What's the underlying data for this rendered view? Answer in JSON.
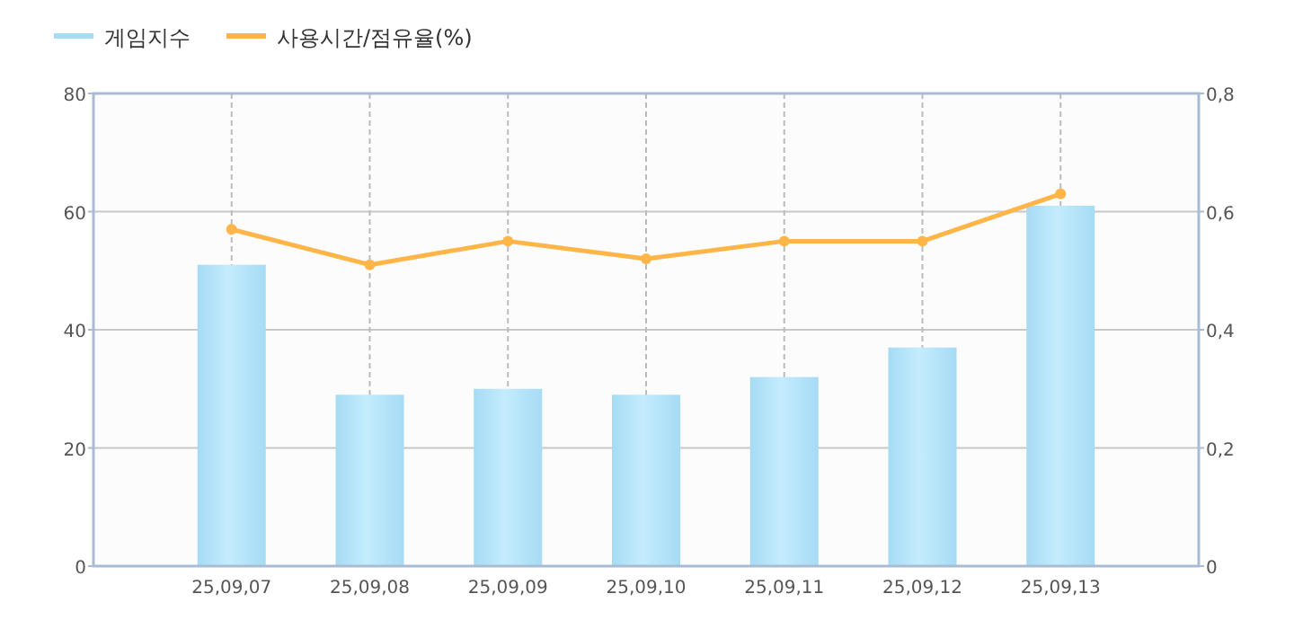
{
  "chart_data": {
    "type": "bar",
    "categories": [
      "25,09,07",
      "25,09,08",
      "25,09,09",
      "25,09,10",
      "25,09,11",
      "25,09,12",
      "25,09,13"
    ],
    "series": [
      {
        "name": "게임지수",
        "color": "#a6dbf5",
        "values": [
          51,
          29,
          30,
          29,
          32,
          37,
          61
        ]
      },
      {
        "name": "사용시간/점유율(%)",
        "type": "line",
        "axis": "y2",
        "color": "#ffb547",
        "marker": "circle",
        "values": [
          0.57,
          0.51,
          0.55,
          0.52,
          0.55,
          0.55,
          0.63
        ]
      }
    ],
    "ylim": [
      0,
      80
    ],
    "yticks": [
      0,
      20,
      40,
      60,
      80
    ],
    "y2lim": [
      0,
      0.8
    ],
    "y2ticks": [
      {
        "value": 0,
        "label": "0"
      },
      {
        "value": 0.2,
        "label": "0,2"
      },
      {
        "value": 0.4,
        "label": "0,4"
      },
      {
        "value": 0.6,
        "label": "0,6"
      },
      {
        "value": 0.8,
        "label": "0,8"
      }
    ],
    "grid": true,
    "legend": "top left"
  }
}
